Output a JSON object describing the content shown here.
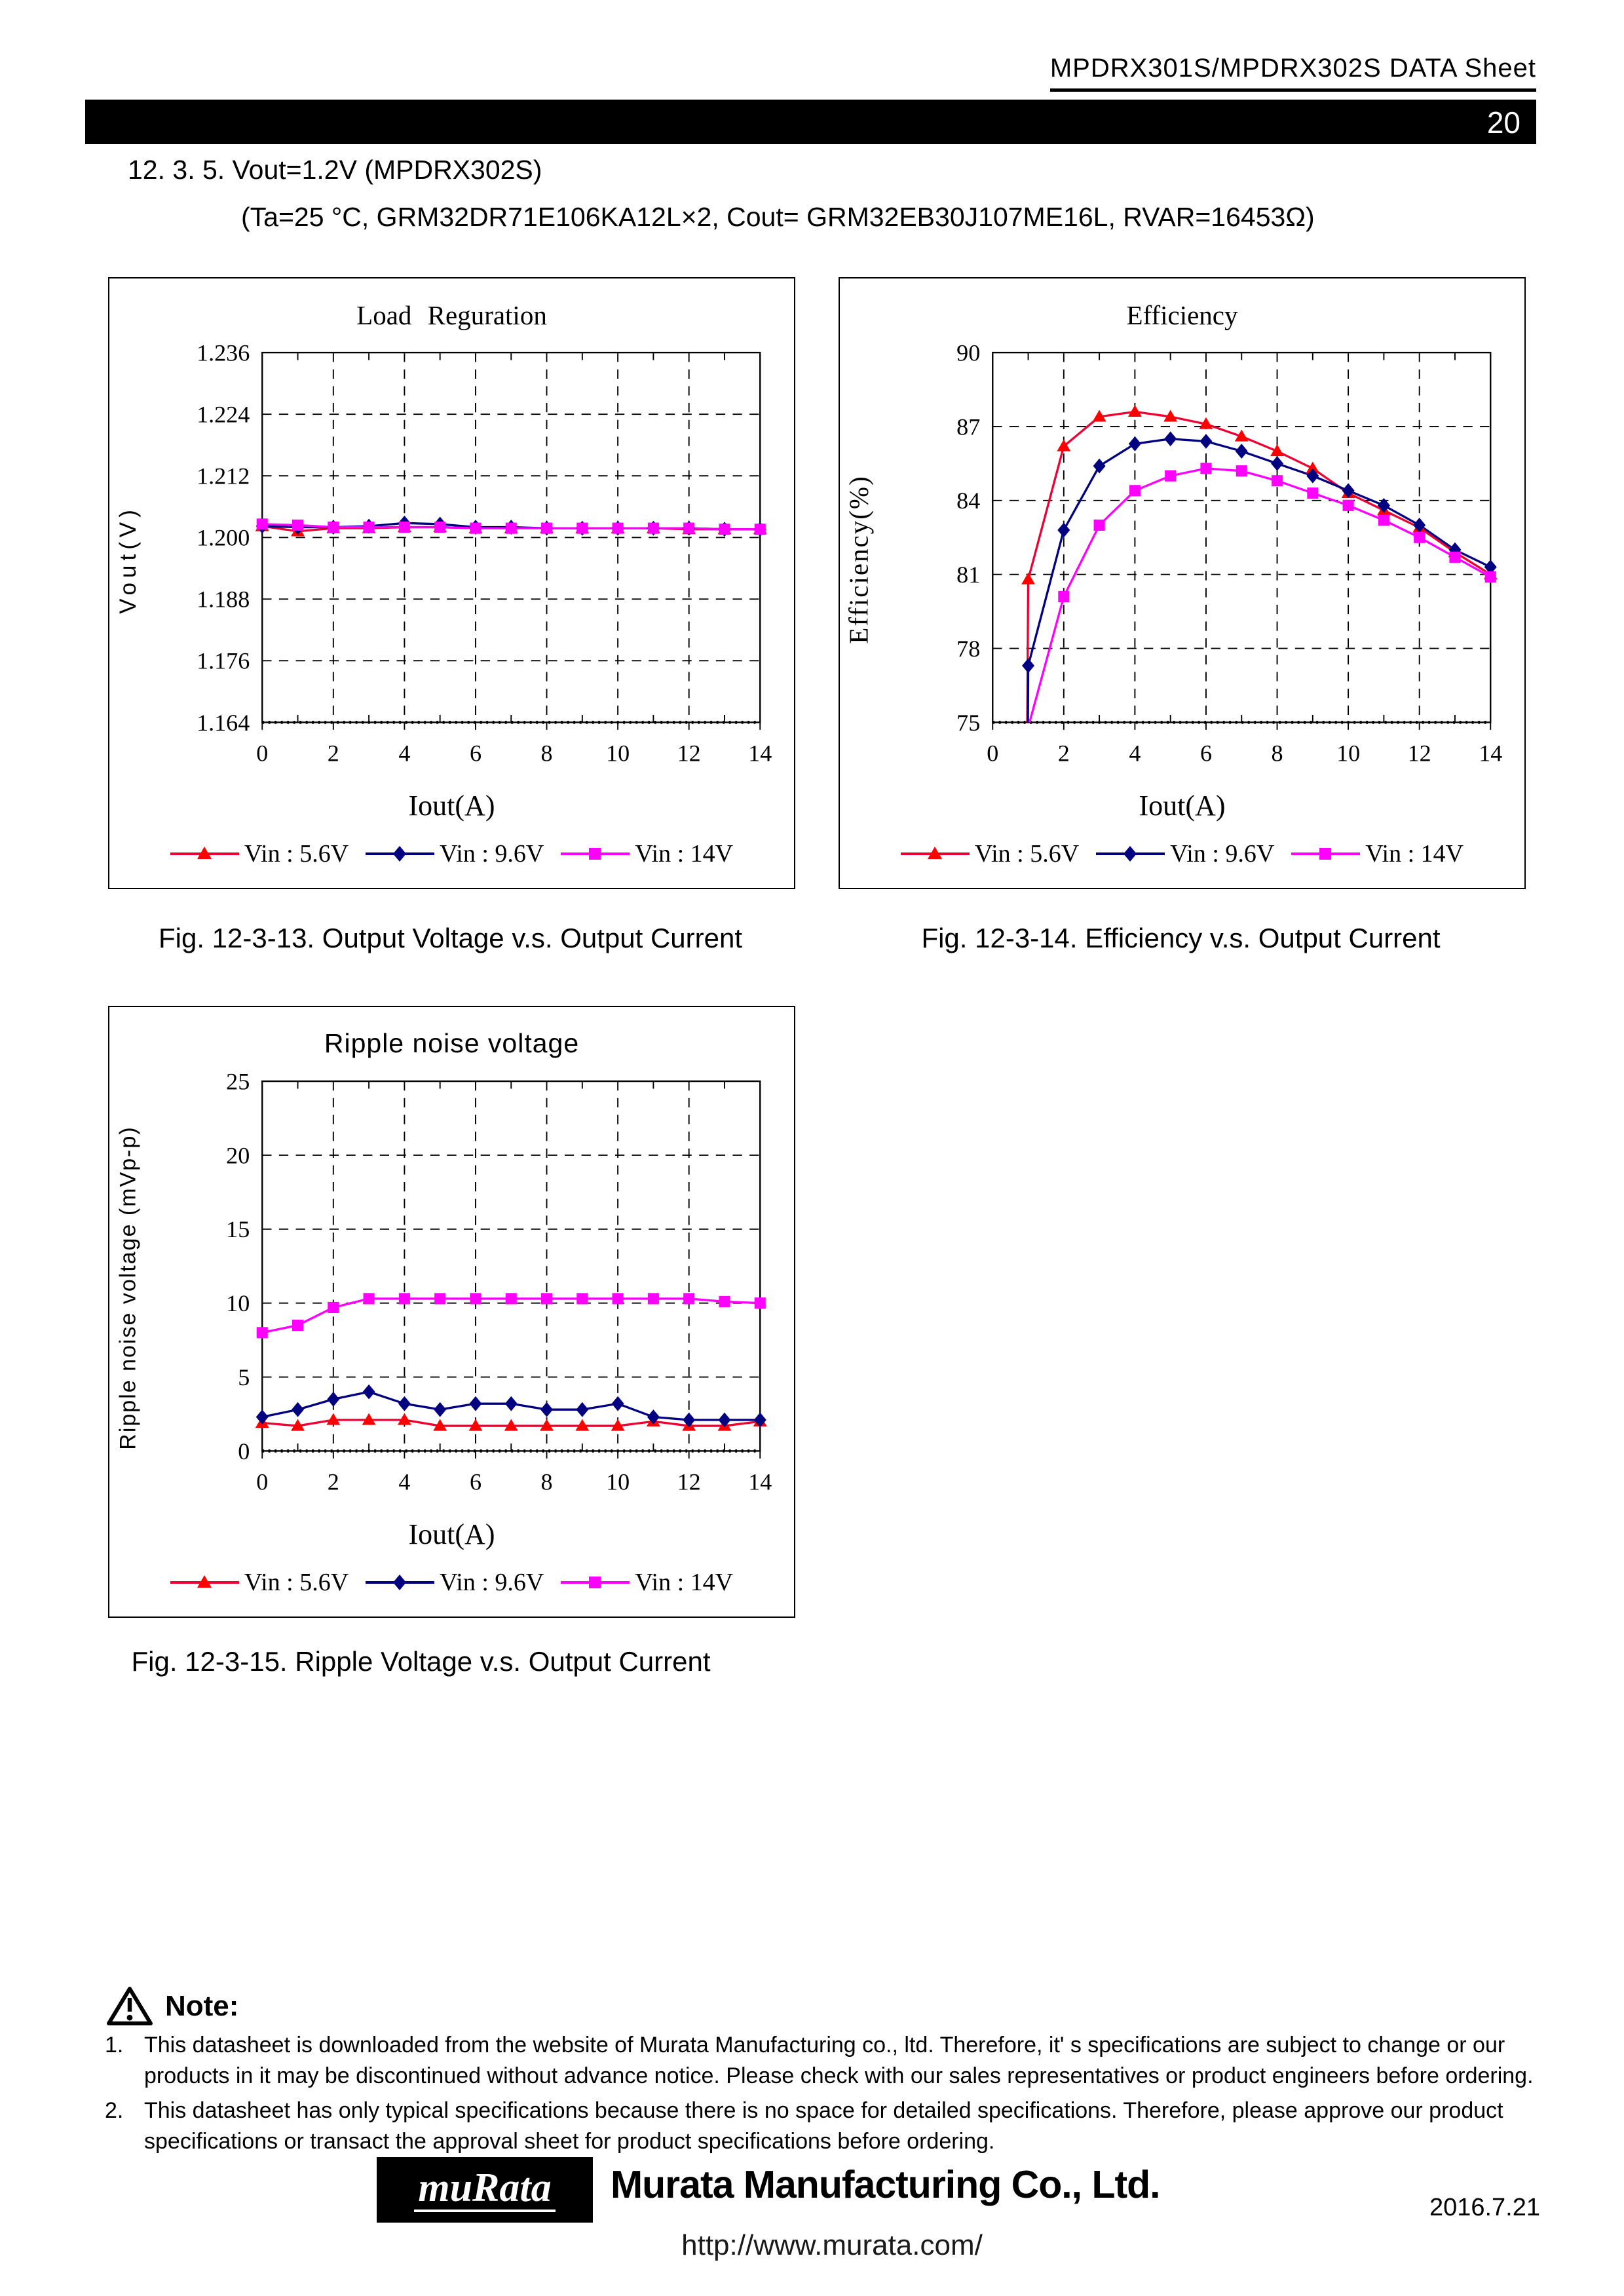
{
  "header": {
    "doc_title": "MPDRX301S/MPDRX302S  DATA  Sheet",
    "page_number": "20"
  },
  "section": {
    "title": "12. 3. 5. Vout=1.2V (MPDRX302S)",
    "conditions": "(Ta=25 °C, GRM32DR71E106KA12L×2, Cout= GRM32EB30J107ME16L, RVAR=16453Ω)"
  },
  "figures": [
    {
      "caption": "Fig.  12-3-13. Output Voltage v.s. Output Current"
    },
    {
      "caption": "Fig.  12-3-14. Efficiency v.s. Output Current"
    },
    {
      "caption": "Fig.  12-3-15. Ripple Voltage v.s. Output Current"
    }
  ],
  "note": {
    "heading": "Note:",
    "items": [
      {
        "number": "1.",
        "text": "This datasheet is downloaded from the website of Murata Manufacturing co., ltd. Therefore, it' s specifications are subject to change or our products in it may be discontinued without advance notice. Please check with our sales representatives or product engineers before ordering."
      },
      {
        "number": "2.",
        "text": "This datasheet has only typical specifications because there is no space for detailed specifications. Therefore, please approve our product specifications or transact the approval sheet for product specifications before ordering."
      }
    ]
  },
  "footer": {
    "logo_text": "muRata",
    "company": "Murata Manufacturing Co., Ltd.",
    "url": "http://www.murata.com/",
    "date": "2016.7.21"
  },
  "chart_data": [
    {
      "type": "line",
      "title": "Load Reguration",
      "xlabel": "Iout(A)",
      "ylabel": "Vout(V)",
      "xlim": [
        0,
        14
      ],
      "ylim": [
        1.164,
        1.236
      ],
      "xticks": [
        0,
        2,
        4,
        6,
        8,
        10,
        12,
        14
      ],
      "yticks": [
        1.164,
        1.176,
        1.188,
        1.2,
        1.212,
        1.224,
        1.236
      ],
      "ytick_labels": [
        "1.164",
        "1.176",
        "1.188",
        "1.200",
        "1.212",
        "1.224",
        "1.236"
      ],
      "grid": "dashed",
      "legend_position": "bottom",
      "series": [
        {
          "name": "Vin : 5.6V",
          "marker": "triangle",
          "line_color": "#ee0033",
          "marker_color": "#ff0000",
          "x": [
            0,
            1,
            2,
            3,
            4,
            5,
            6,
            7,
            8,
            9,
            10,
            11,
            12,
            13,
            14
          ],
          "values": [
            1.2022,
            1.2012,
            1.2018,
            1.2018,
            1.202,
            1.202,
            1.2018,
            1.2018,
            1.2018,
            1.2018,
            1.2018,
            1.2018,
            1.2016,
            1.2016,
            1.2016
          ]
        },
        {
          "name": "Vin : 9.6V",
          "marker": "diamond",
          "line_color": "#000080",
          "marker_color": "#000080",
          "x": [
            0,
            1,
            2,
            3,
            4,
            5,
            6,
            7,
            8,
            9,
            10,
            11,
            12,
            13,
            14
          ],
          "values": [
            1.2022,
            1.202,
            1.202,
            1.2022,
            1.2028,
            1.2026,
            1.202,
            1.202,
            1.2018,
            1.2018,
            1.2018,
            1.2018,
            1.2018,
            1.2016,
            1.2016
          ]
        },
        {
          "name": "Vin : 14V",
          "marker": "square",
          "line_color": "#ff00ff",
          "marker_color": "#ff00ff",
          "x": [
            0,
            1,
            2,
            3,
            4,
            5,
            6,
            7,
            8,
            9,
            10,
            11,
            12,
            13,
            14
          ],
          "values": [
            1.2026,
            1.2024,
            1.202,
            1.202,
            1.202,
            1.202,
            1.2018,
            1.2018,
            1.2018,
            1.2018,
            1.2018,
            1.2018,
            1.2018,
            1.2016,
            1.2016
          ]
        }
      ]
    },
    {
      "type": "line",
      "title": "Efficiency",
      "xlabel": "Iout(A)",
      "ylabel": "Efficiency(%)",
      "xlim": [
        0,
        14
      ],
      "ylim": [
        75,
        90
      ],
      "xticks": [
        0,
        2,
        4,
        6,
        8,
        10,
        12,
        14
      ],
      "yticks": [
        75,
        78,
        81,
        84,
        87,
        90
      ],
      "ytick_labels": [
        "75",
        "78",
        "81",
        "84",
        "87",
        "90"
      ],
      "grid": "dashed",
      "legend_position": "bottom",
      "series": [
        {
          "name": "Vin : 5.6V",
          "marker": "triangle",
          "line_color": "#ee0033",
          "marker_color": "#ff0000",
          "x": [
            1,
            2,
            3,
            4,
            5,
            6,
            7,
            8,
            9,
            10,
            11,
            12,
            13,
            14
          ],
          "values": [
            80.8,
            86.2,
            87.4,
            87.6,
            87.4,
            87.1,
            86.6,
            86.0,
            85.3,
            84.3,
            83.6,
            82.9,
            81.9,
            81.0
          ],
          "line_x": [
            0.97,
            1,
            2,
            3,
            4,
            5,
            6,
            7,
            8,
            9,
            10,
            11,
            12,
            13,
            14
          ],
          "line_values": [
            74.2,
            80.8,
            86.2,
            87.4,
            87.6,
            87.4,
            87.1,
            86.6,
            86.0,
            85.3,
            84.3,
            83.6,
            82.9,
            81.9,
            81.0
          ]
        },
        {
          "name": "Vin : 9.6V",
          "marker": "diamond",
          "line_color": "#000080",
          "marker_color": "#000080",
          "x": [
            1,
            2,
            3,
            4,
            5,
            6,
            7,
            8,
            9,
            10,
            11,
            12,
            13,
            14
          ],
          "values": [
            77.3,
            82.8,
            85.4,
            86.3,
            86.5,
            86.4,
            86.0,
            85.5,
            85.0,
            84.4,
            83.8,
            83.0,
            82.0,
            81.3
          ],
          "line_x": [
            0.99,
            1,
            2,
            3,
            4,
            5,
            6,
            7,
            8,
            9,
            10,
            11,
            12,
            13,
            14
          ],
          "line_values": [
            74.2,
            77.3,
            82.8,
            85.4,
            86.3,
            86.5,
            86.4,
            86.0,
            85.5,
            85.0,
            84.4,
            83.8,
            83.0,
            82.0,
            81.3
          ]
        },
        {
          "name": "Vin : 14V",
          "marker": "square",
          "line_color": "#ff00ff",
          "marker_color": "#ff00ff",
          "x": [
            1,
            2,
            3,
            4,
            5,
            6,
            7,
            8,
            9,
            10,
            11,
            12,
            13,
            14
          ],
          "values": [
            74.8,
            80.1,
            83.0,
            84.4,
            85.0,
            85.3,
            85.2,
            84.8,
            84.3,
            83.8,
            83.2,
            82.5,
            81.7,
            80.9
          ]
        }
      ]
    },
    {
      "type": "line",
      "title": "Ripple noise voltage",
      "xlabel": "Iout(A)",
      "ylabel": "Ripple noise voltage (mVp-p)",
      "xlim": [
        0,
        14
      ],
      "ylim": [
        0,
        25
      ],
      "xticks": [
        0,
        2,
        4,
        6,
        8,
        10,
        12,
        14
      ],
      "yticks": [
        0,
        5,
        10,
        15,
        20,
        25
      ],
      "ytick_labels": [
        "0",
        "5",
        "10",
        "15",
        "20",
        "25"
      ],
      "grid": "dashed",
      "legend_position": "bottom",
      "series": [
        {
          "name": "Vin : 5.6V",
          "marker": "triangle",
          "line_color": "#ee0033",
          "marker_color": "#ff0000",
          "x": [
            0,
            1,
            2,
            3,
            4,
            5,
            6,
            7,
            8,
            9,
            10,
            11,
            12,
            13,
            14
          ],
          "values": [
            1.9,
            1.7,
            2.1,
            2.1,
            2.1,
            1.7,
            1.7,
            1.7,
            1.7,
            1.7,
            1.7,
            2.0,
            1.7,
            1.7,
            2.0
          ]
        },
        {
          "name": "Vin : 9.6V",
          "marker": "diamond",
          "line_color": "#000080",
          "marker_color": "#000080",
          "x": [
            0,
            1,
            2,
            3,
            4,
            5,
            6,
            7,
            8,
            9,
            10,
            11,
            12,
            13,
            14
          ],
          "values": [
            2.3,
            2.8,
            3.5,
            4.0,
            3.2,
            2.8,
            3.2,
            3.2,
            2.8,
            2.8,
            3.2,
            2.3,
            2.1,
            2.1,
            2.1
          ]
        },
        {
          "name": "Vin : 14V",
          "marker": "square",
          "line_color": "#ff00ff",
          "marker_color": "#ff00ff",
          "x": [
            0,
            1,
            2,
            3,
            4,
            5,
            6,
            7,
            8,
            9,
            10,
            11,
            12,
            13,
            14
          ],
          "values": [
            8.0,
            8.5,
            9.7,
            10.3,
            10.3,
            10.3,
            10.3,
            10.3,
            10.3,
            10.3,
            10.3,
            10.3,
            10.3,
            10.1,
            10.0
          ]
        }
      ]
    }
  ]
}
